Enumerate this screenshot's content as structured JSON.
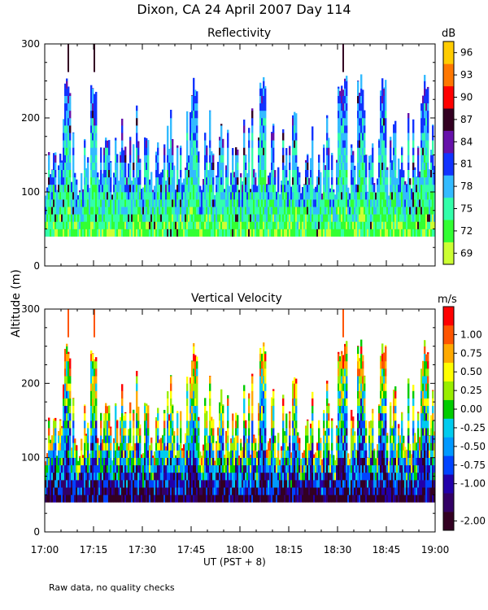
{
  "title": "Dixon, CA 24 April 2007  Day 114",
  "ylabel": "Altitude (m)",
  "xlabel": "UT  (PST + 8)",
  "footnote": "Raw data, no quality checks",
  "x_ticks": [
    "17:00",
    "17:15",
    "17:30",
    "17:45",
    "18:00",
    "18:15",
    "18:30",
    "18:45",
    "19:00"
  ],
  "y_ticks": [
    "0",
    "100",
    "200",
    "300"
  ],
  "colors": {
    "reflectivity": [
      "#ccff33",
      "#33ff33",
      "#33ffaa",
      "#33bbff",
      "#1133ff",
      "#6611aa",
      "#330022",
      "#ff0000",
      "#ff7700",
      "#ffcc00"
    ],
    "velocity": [
      "#330022",
      "#330066",
      "#2200aa",
      "#0044ff",
      "#0099ff",
      "#00ccee",
      "#00cc00",
      "#99ee00",
      "#ffff00",
      "#ffaa00",
      "#ff5500",
      "#ff0000"
    ]
  },
  "chart_data": [
    {
      "type": "heatmap",
      "title": "Reflectivity",
      "xlabel": "UT  (PST + 8)",
      "ylabel": "Altitude (m)",
      "x_range": [
        "17:00",
        "19:00"
      ],
      "xlim_minutes": [
        0,
        120
      ],
      "ylim": [
        0,
        300
      ],
      "data_altitude_range": [
        40,
        300
      ],
      "colorbar": {
        "unit": "dB",
        "range": [
          67.5,
          97.5
        ],
        "tick_labels": [
          "69",
          "72",
          "75",
          "78",
          "81",
          "84",
          "87",
          "90",
          "93",
          "96"
        ],
        "tick_values": [
          69,
          72,
          75,
          78,
          81,
          84,
          87,
          90,
          93,
          96
        ]
      },
      "notable_tall_echoes_minutes": [
        7,
        15,
        46,
        67,
        91,
        92,
        97,
        104,
        117
      ]
    },
    {
      "type": "heatmap",
      "title": "Vertical Velocity",
      "xlabel": "UT  (PST + 8)",
      "ylabel": "Altitude (m)",
      "x_range": [
        "17:00",
        "19:00"
      ],
      "xlim_minutes": [
        0,
        120
      ],
      "ylim": [
        0,
        300
      ],
      "data_altitude_range": [
        40,
        300
      ],
      "colorbar": {
        "unit": "m/s",
        "range": [
          -2.125,
          1.125
        ],
        "tick_labels": [
          "-2.00",
          "-1.00",
          "-0.75",
          "-0.50",
          "-0.25",
          "0.00",
          "0.25",
          "0.50",
          "0.75",
          "1.00"
        ],
        "tick_values": [
          -2.0,
          -1.0,
          -0.75,
          -0.5,
          -0.25,
          0.0,
          0.25,
          0.5,
          0.75,
          1.0
        ]
      }
    }
  ]
}
